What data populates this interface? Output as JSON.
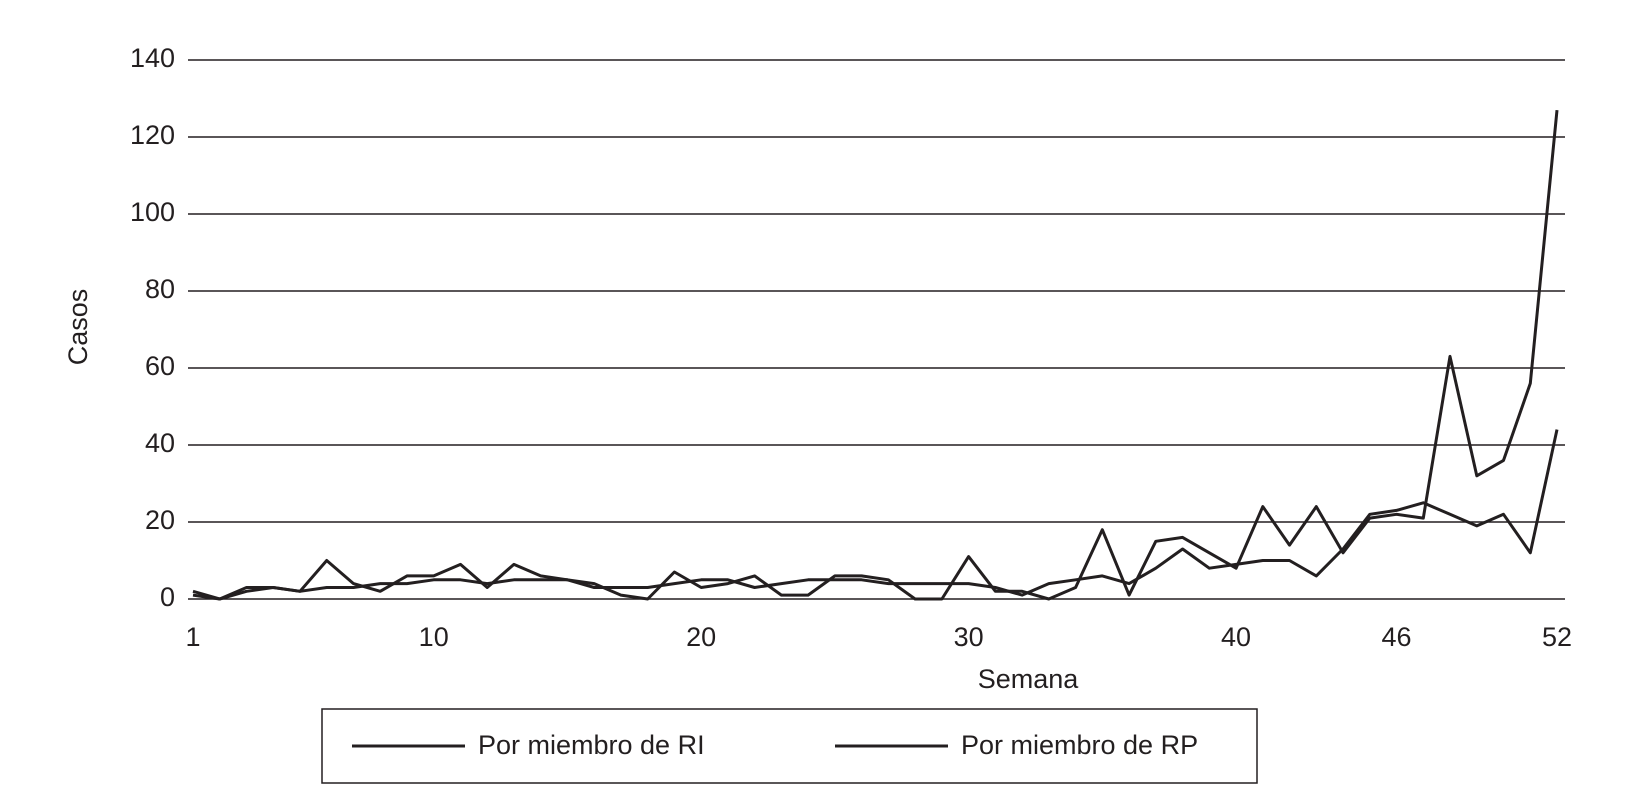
{
  "chart_data": {
    "type": "line",
    "x_label": "Semana",
    "y_label": "Casos",
    "x": [
      1,
      2,
      3,
      4,
      5,
      6,
      7,
      8,
      9,
      10,
      11,
      12,
      13,
      14,
      15,
      16,
      17,
      18,
      19,
      20,
      21,
      22,
      23,
      24,
      25,
      26,
      27,
      28,
      29,
      30,
      31,
      32,
      33,
      34,
      35,
      36,
      37,
      38,
      39,
      40,
      41,
      42,
      43,
      44,
      45,
      46,
      47,
      48,
      49,
      50,
      51,
      52
    ],
    "xlim": [
      1,
      52
    ],
    "xticks": [
      1,
      10,
      20,
      30,
      40,
      46,
      52
    ],
    "ylim": [
      0,
      140
    ],
    "yticks": [
      0,
      20,
      40,
      60,
      80,
      100,
      120,
      140
    ],
    "grid": true,
    "series": [
      {
        "name": "Por miembro de RI",
        "color": "#231f20",
        "values": [
          1,
          0,
          2,
          3,
          2,
          3,
          3,
          4,
          4,
          5,
          5,
          4,
          5,
          5,
          5,
          3,
          3,
          3,
          4,
          5,
          5,
          3,
          4,
          5,
          5,
          5,
          4,
          4,
          4,
          4,
          3,
          1,
          4,
          5,
          6,
          4,
          8,
          13,
          8,
          9,
          10,
          10,
          6,
          13,
          22,
          23,
          25,
          22,
          19,
          22,
          12,
          44
        ]
      },
      {
        "name": "Por miembro de RP",
        "color": "#231f20",
        "values": [
          2,
          0,
          3,
          3,
          2,
          10,
          4,
          2,
          6,
          6,
          9,
          3,
          9,
          6,
          5,
          4,
          1,
          0,
          7,
          3,
          4,
          6,
          1,
          1,
          6,
          6,
          5,
          0,
          0,
          11,
          2,
          2,
          0,
          3,
          18,
          1,
          15,
          16,
          12,
          8,
          24,
          14,
          24,
          12,
          21,
          22,
          21,
          63,
          32,
          36,
          56,
          127
        ]
      }
    ]
  }
}
